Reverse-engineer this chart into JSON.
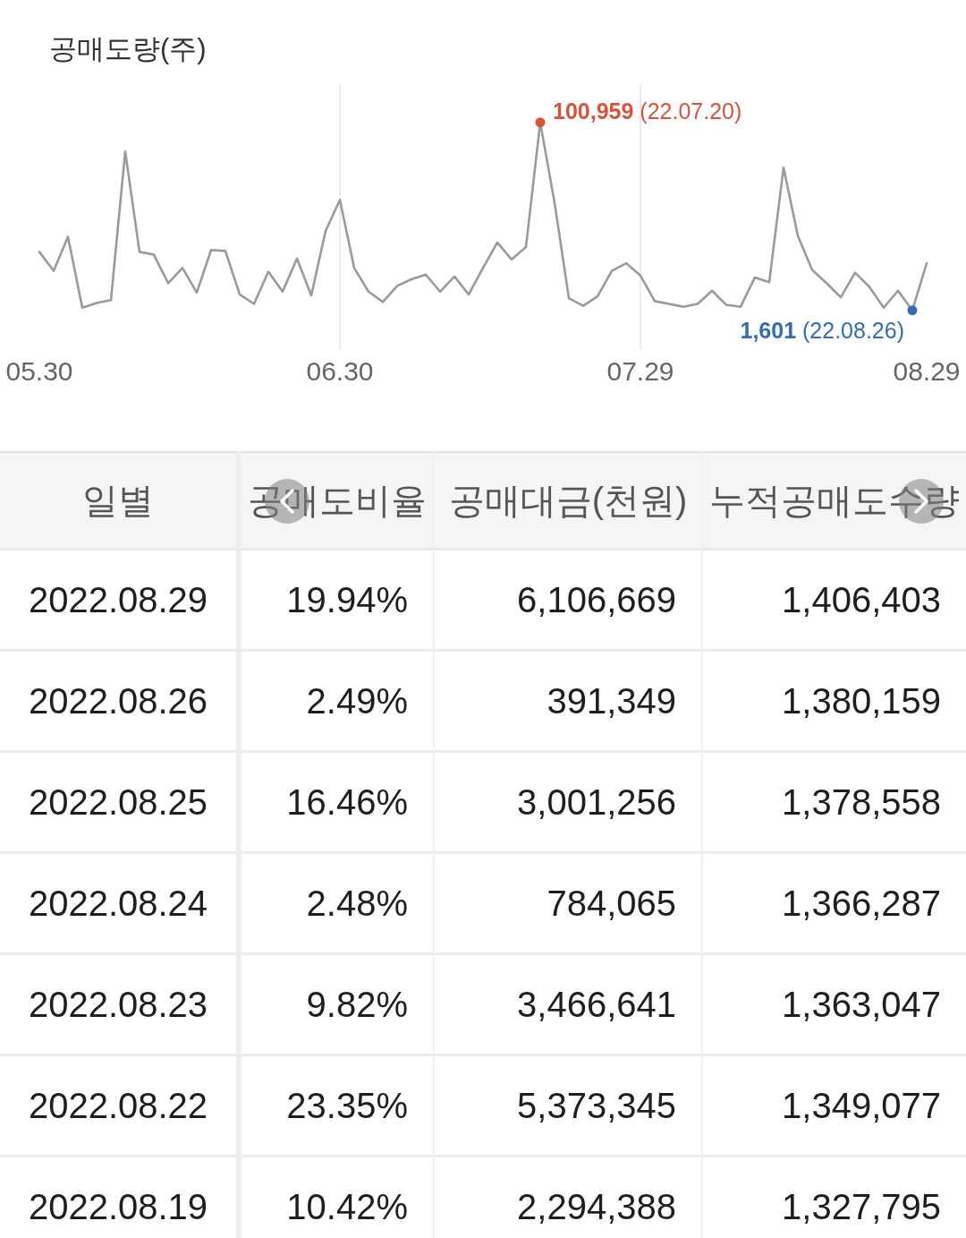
{
  "chart_data": [
    {
      "type": "line",
      "title": "공매도량(주)",
      "tick_labels": "x",
      "grid": "x",
      "categories": [
        "05.30",
        null,
        null,
        null,
        null,
        null,
        null,
        null,
        null,
        null,
        null,
        null,
        null,
        null,
        null,
        null,
        null,
        null,
        null,
        null,
        null,
        "06.30",
        null,
        null,
        null,
        null,
        null,
        null,
        null,
        null,
        null,
        null,
        null,
        null,
        null,
        null,
        null,
        null,
        null,
        null,
        null,
        null,
        "07.29",
        null,
        null,
        null,
        null,
        null,
        null,
        null,
        null,
        null,
        null,
        null,
        null,
        null,
        null,
        null,
        null,
        null,
        null,
        null,
        "08.29"
      ],
      "series": [
        {
          "color": "#9a9a9a",
          "values": [
            32500,
            22500,
            40500,
            3000,
            5500,
            7000,
            85500,
            32500,
            31000,
            16000,
            24000,
            11000,
            33500,
            33000,
            10000,
            5000,
            22000,
            11500,
            29000,
            9500,
            43500,
            60000,
            24000,
            11500,
            6000,
            14500,
            18000,
            20500,
            11500,
            19500,
            10000,
            24000,
            37500,
            28500,
            35000,
            100959,
            58500,
            8000,
            4000,
            9000,
            22500,
            26500,
            20000,
            6500,
            5000,
            3500,
            5000,
            12000,
            4500,
            3500,
            19000,
            16500,
            77000,
            41000,
            23000,
            16000,
            8500,
            21500,
            14000,
            3000,
            12000,
            1601,
            26500
          ]
        },
        {
          "type": "scatter",
          "values": [
            null,
            null,
            null,
            null,
            null,
            null,
            null,
            null,
            null,
            null,
            null,
            null,
            null,
            null,
            null,
            null,
            null,
            null,
            null,
            null,
            null,
            null,
            null,
            null,
            null,
            null,
            null,
            null,
            null,
            null,
            null,
            null,
            null,
            null,
            null,
            100959,
            null,
            null,
            null,
            null,
            null,
            null,
            null,
            null,
            null,
            null,
            null,
            null,
            null,
            null,
            null,
            null,
            null,
            null,
            null,
            null,
            null,
            null,
            null,
            null,
            null,
            1601,
            null
          ],
          "colors": [
            null,
            null,
            null,
            null,
            null,
            null,
            null,
            null,
            null,
            null,
            null,
            null,
            null,
            null,
            null,
            null,
            null,
            null,
            null,
            null,
            null,
            null,
            null,
            null,
            null,
            null,
            null,
            null,
            null,
            null,
            null,
            null,
            null,
            null,
            null,
            "#d9533a",
            null,
            null,
            null,
            null,
            null,
            null,
            null,
            null,
            null,
            null,
            null,
            null,
            null,
            null,
            null,
            null,
            null,
            null,
            null,
            null,
            null,
            null,
            null,
            null,
            null,
            "#2f6db5",
            null
          ],
          "value_labels": [
            null,
            null,
            null,
            null,
            null,
            null,
            null,
            null,
            null,
            null,
            null,
            null,
            null,
            null,
            null,
            null,
            null,
            null,
            null,
            null,
            null,
            null,
            null,
            null,
            null,
            null,
            null,
            null,
            null,
            null,
            null,
            null,
            null,
            null,
            null,
            "100,959 (22.07.20)",
            null,
            null,
            null,
            null,
            null,
            null,
            null,
            null,
            null,
            null,
            null,
            null,
            null,
            null,
            null,
            null,
            null,
            null,
            null,
            null,
            null,
            null,
            null,
            null,
            null,
            "1,601 (22.08.26)",
            null
          ]
        }
      ]
    },
    {
      "type": "other",
      "categories": [
        "일별",
        "공매도비율",
        "공매대금(천원)",
        "누적공매도수량"
      ],
      "annotations": [
        "2022.08.29",
        "19.94%",
        "6,106,669",
        "1,406,403",
        "2022.08.26",
        "2.49%",
        "391,349",
        "1,380,159",
        "2022.08.25",
        "16.46%",
        "3,001,256",
        "1,378,558",
        "2022.08.24",
        "2.48%",
        "784,065",
        "1,366,287",
        "2022.08.23",
        "9.82%",
        "3,466,641",
        "1,363,047",
        "2022.08.22",
        "23.35%",
        "5,373,345",
        "1,349,077",
        "2022.08.19",
        "10.42%",
        "2,294,388",
        "1,327,795"
      ]
    }
  ]
}
